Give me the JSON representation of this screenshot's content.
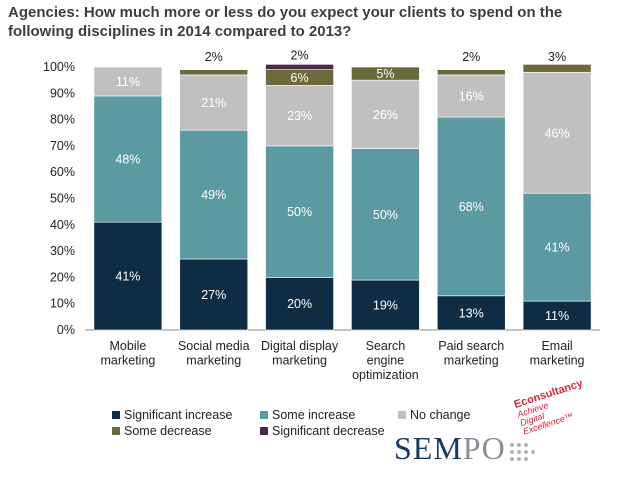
{
  "title": "Agencies: How much more or less do you expect your clients to spend on the following disciplines in 2014 compared to 2013?",
  "chart_data": {
    "type": "bar",
    "stacked": true,
    "categories": [
      "Mobile marketing",
      "Social media marketing",
      "Digital display marketing",
      "Search engine optimization",
      "Paid search marketing",
      "Email marketing"
    ],
    "category_lines": [
      [
        "Mobile",
        "marketing"
      ],
      [
        "Social media",
        "marketing"
      ],
      [
        "Digital display",
        "marketing"
      ],
      [
        "Search",
        "engine",
        "optimization"
      ],
      [
        "Paid search",
        "marketing"
      ],
      [
        "Email",
        "marketing"
      ]
    ],
    "series": [
      {
        "name": "Significant increase",
        "color": "#0e2d44",
        "values": [
          41,
          27,
          20,
          19,
          13,
          11
        ]
      },
      {
        "name": "Some increase",
        "color": "#5b9aa0",
        "values": [
          48,
          49,
          50,
          50,
          68,
          41
        ]
      },
      {
        "name": "No change",
        "color": "#c0c0c0",
        "values": [
          11,
          21,
          23,
          26,
          16,
          46
        ]
      },
      {
        "name": "Some decrease",
        "color": "#6b6a3a",
        "values": [
          0,
          2,
          6,
          5,
          2,
          3
        ]
      },
      {
        "name": "Significant decrease",
        "color": "#4a2a4a",
        "values": [
          0,
          0,
          2,
          0,
          0,
          0
        ]
      }
    ],
    "labels": [
      [
        "41%",
        "27%",
        "20%",
        "19%",
        "13%",
        "11%"
      ],
      [
        "48%",
        "49%",
        "50%",
        "50%",
        "68%",
        "41%"
      ],
      [
        "11%",
        "21%",
        "23%",
        "26%",
        "16%",
        "46%"
      ],
      [
        null,
        "2%",
        "6%",
        "5%",
        "2%",
        "3%"
      ],
      [
        null,
        null,
        "2%",
        null,
        null,
        null
      ]
    ],
    "ylim": [
      0,
      100
    ],
    "yticks": [
      "0%",
      "10%",
      "20%",
      "30%",
      "40%",
      "50%",
      "60%",
      "70%",
      "80%",
      "90%",
      "100%"
    ],
    "legend_position": "bottom-left"
  },
  "logo": {
    "part1": "SEM",
    "part2": "PO"
  },
  "stamp": {
    "line1": "Econsultancy",
    "line2": "Achieve",
    "line3": "Digital",
    "line4": "Excellence™"
  }
}
